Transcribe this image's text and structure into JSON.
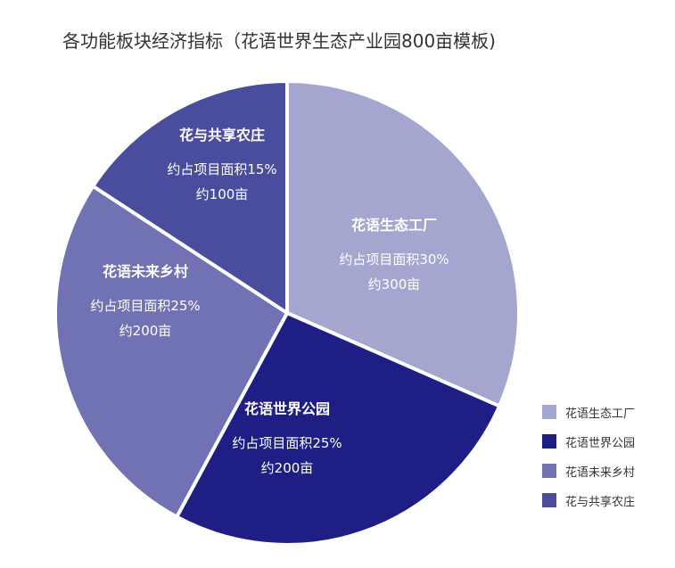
{
  "chart_data": {
    "type": "pie",
    "title": "各功能板块经济指标（花语世界生态产业园800亩模板)",
    "slices": [
      {
        "name": "花语生态工厂",
        "value": 30,
        "area_label": "约占项目面积30%",
        "acreage_label": "约300亩",
        "color": "#a4a6d0"
      },
      {
        "name": "花语世界公园",
        "value": 25,
        "area_label": "约占项目面积25%",
        "acreage_label": "约200亩",
        "color": "#1e1e85"
      },
      {
        "name": "花语未来乡村",
        "value": 25,
        "area_label": "约占项目面积25%",
        "acreage_label": "约200亩",
        "color": "#7072b4"
      },
      {
        "name": "花与共享农庄",
        "value": 15,
        "area_label": "约占项目面积15%",
        "acreage_label": "约100亩",
        "color": "#4a4c9e"
      }
    ],
    "legend_position": "bottom-right"
  }
}
